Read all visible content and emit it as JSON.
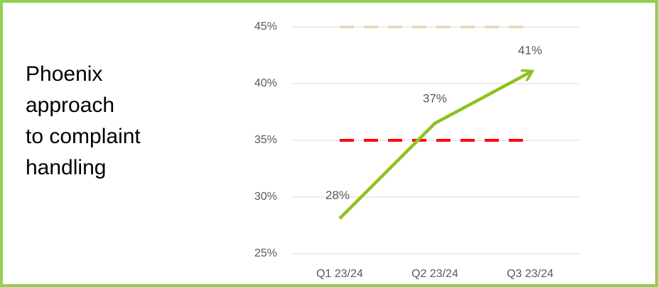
{
  "chart_data": {
    "type": "line",
    "title": [
      "Phoenix",
      "approach",
      "to complaint",
      "handling"
    ],
    "categories": [
      "Q1 23/24",
      "Q2 23/24",
      "Q3 23/24"
    ],
    "series": [
      {
        "color": "#8dc21f",
        "values": [
          28.1,
          36.5,
          41
        ],
        "value_labels": [
          "28%",
          "37%",
          "41%"
        ],
        "arrow": true
      },
      {
        "color": "#ff0000",
        "values": [
          35,
          35,
          35
        ],
        "dashed": true
      },
      {
        "color": "#ead9b9",
        "values": [
          45,
          45,
          45
        ],
        "dashed": true
      }
    ],
    "ylim": [
      25,
      45
    ],
    "yticks": [
      {
        "value": 25,
        "label": "25%"
      },
      {
        "value": 30,
        "label": "30%"
      },
      {
        "value": 35,
        "label": "35%"
      },
      {
        "value": 40,
        "label": "40%"
      },
      {
        "value": 45,
        "label": "45%"
      }
    ],
    "grid": true
  }
}
